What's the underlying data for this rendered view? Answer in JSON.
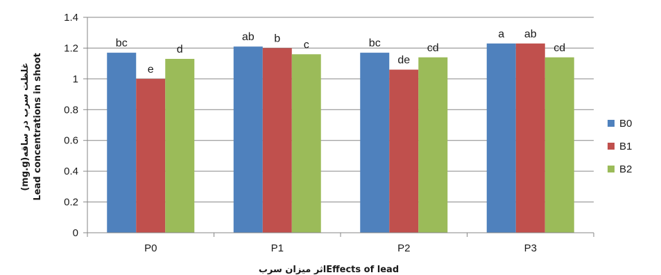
{
  "chart_data": {
    "type": "bar",
    "categories": [
      "P0",
      "P1",
      "P2",
      "P3"
    ],
    "series": [
      {
        "name": "B0",
        "color": "#4f81bd",
        "values": [
          1.17,
          1.21,
          1.17,
          1.23
        ],
        "labels": [
          "bc",
          "ab",
          "bc",
          "a"
        ]
      },
      {
        "name": "B1",
        "color": "#c0504d",
        "values": [
          1.0,
          1.2,
          1.06,
          1.23
        ],
        "labels": [
          "e",
          "b",
          "de",
          "ab"
        ]
      },
      {
        "name": "B2",
        "color": "#9bbb59",
        "values": [
          1.13,
          1.16,
          1.14,
          1.14
        ],
        "labels": [
          "d",
          "c",
          "cd",
          "cd"
        ]
      }
    ],
    "ylim": [
      0,
      1.4
    ],
    "yticks": [
      0,
      0.2,
      0.4,
      0.6,
      0.8,
      1,
      1.2,
      1.4
    ],
    "ytick_labels": [
      "0",
      "0.2",
      "0.4",
      "0.6",
      "0.8",
      "1",
      "1.2",
      "1.4"
    ],
    "ylabel_line1": "غلظت سرب در ساقه(mg.g)",
    "ylabel_line2": "Lead concentrations in shoot",
    "xlabel": "اثر میزان سربEffects of lead",
    "grid": true,
    "legend_position": "right"
  }
}
